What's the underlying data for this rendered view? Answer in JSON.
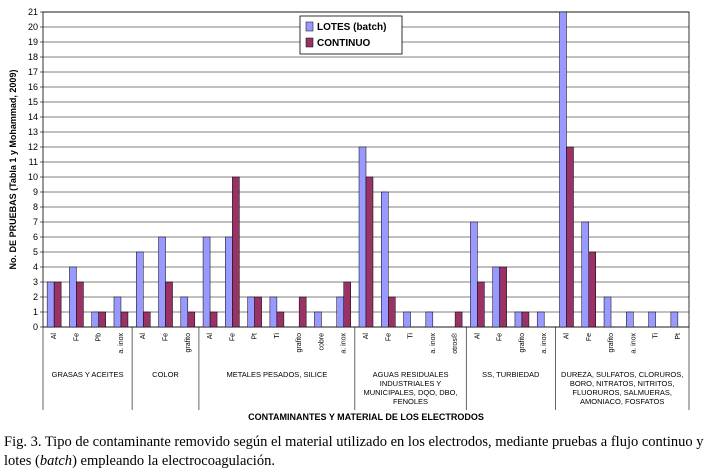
{
  "chart_data": {
    "type": "bar",
    "ylabel": "No. DE PRUEBAS (Tabla 1 y Mohammad, 2009)",
    "xlabel": "CONTAMINANTES Y MATERIAL DE LOS ELECTRODOS",
    "ylim": [
      0,
      21
    ],
    "yticks": [
      "0",
      "1",
      "2",
      "3",
      "4",
      "5",
      "6",
      "7",
      "8",
      "9",
      "10",
      "11",
      "12",
      "13",
      "14",
      "15",
      "16",
      "17",
      "18",
      "19",
      "20",
      "21"
    ],
    "grid": "horizontal",
    "legend_position": "top-center",
    "colors": {
      "lotes": "#9999ff",
      "continuo": "#993366"
    },
    "categories": [
      "Al",
      "Fe",
      "Pb",
      "a. inox",
      "Al",
      "Fe",
      "grafito",
      "Al",
      "Fe",
      "Pt",
      "Ti",
      "grafito",
      "cobre",
      "a. inox",
      "Al",
      "Fe",
      "Ti",
      "a. inox",
      "otros®",
      "Al",
      "Fe",
      "grafito",
      "a. inox",
      "Al",
      "Fe",
      "grafito",
      "a. inox",
      "Ti",
      "Pt"
    ],
    "series": [
      {
        "name": "LOTES (batch)",
        "values": [
          3,
          4,
          1,
          2,
          5,
          6,
          2,
          6,
          6,
          2,
          2,
          0,
          1,
          2,
          12,
          9,
          1,
          1,
          0,
          7,
          4,
          1,
          1,
          21,
          7,
          2,
          1,
          1,
          1
        ]
      },
      {
        "name": "CONTINUO",
        "values": [
          3,
          3,
          1,
          1,
          1,
          3,
          1,
          1,
          10,
          2,
          1,
          2,
          0,
          3,
          10,
          2,
          0,
          0,
          1,
          3,
          4,
          1,
          0,
          12,
          5,
          0,
          0,
          0,
          0
        ]
      }
    ],
    "groups": [
      {
        "lines": [
          "GRASAS Y ACEITES"
        ],
        "start": 0,
        "count": 4
      },
      {
        "lines": [
          "COLOR"
        ],
        "start": 4,
        "count": 3
      },
      {
        "lines": [
          "METALES PESADOS, SILICE"
        ],
        "start": 7,
        "count": 7
      },
      {
        "lines": [
          "AGUAS RESIDUALES",
          "INDUSTRIALES Y",
          "MUNICIPALES, DQO, DBO,",
          "FENOLES"
        ],
        "start": 14,
        "count": 5
      },
      {
        "lines": [
          "SS, TURBIEDAD"
        ],
        "start": 19,
        "count": 4
      },
      {
        "lines": [
          "DUREZA, SULFATOS, CLORUROS,",
          "BORO, NITRATOS, NITRITOS,",
          "FLUORUROS, SALMUERAS,",
          "AMONIACO, FOSFATOS"
        ],
        "start": 23,
        "count": 6
      }
    ]
  },
  "caption": {
    "prefix": "Fig.  3.  Tipo de contaminante removido según el material utilizado en los electrodos, mediante pruebas a flujo continuo y lotes (",
    "italic": "batch",
    "suffix": ") empleando la electrocoagulación."
  }
}
